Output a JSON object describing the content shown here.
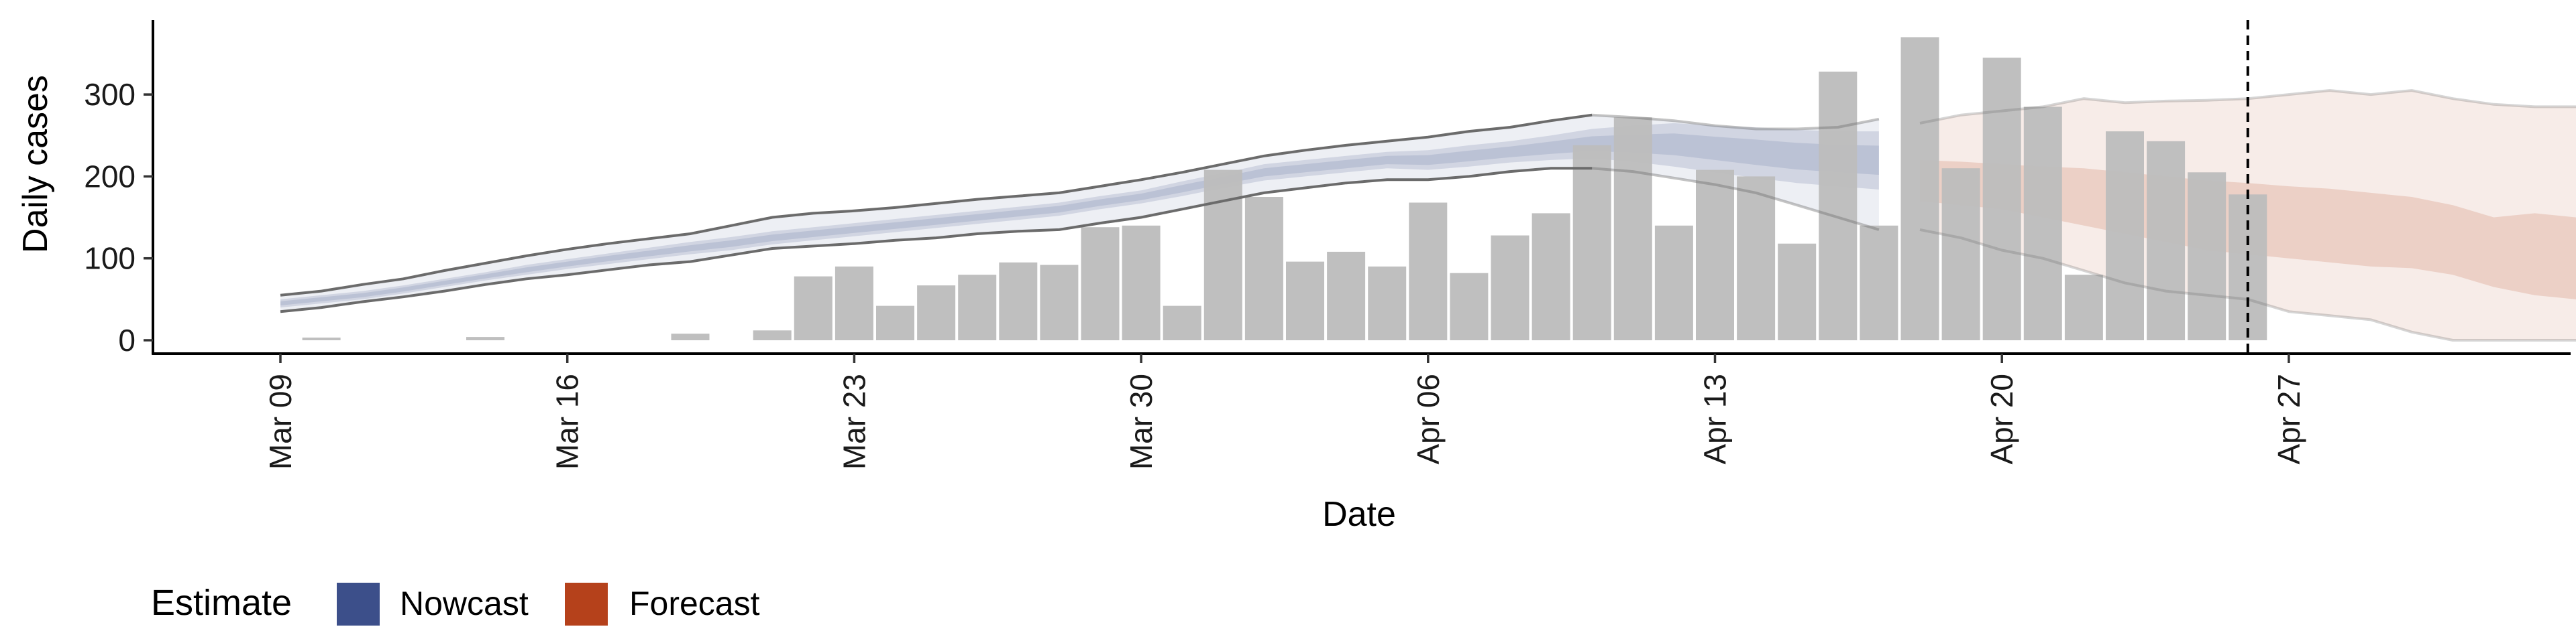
{
  "chart_data": {
    "type": "bar",
    "xlabel": "Date",
    "ylabel": "Daily cases",
    "x_start": "2020-03-09",
    "x_tick_labels": [
      "Mar 09",
      "Mar 16",
      "Mar 23",
      "Mar 30",
      "Apr 06",
      "Apr 13",
      "Apr 20",
      "Apr 27"
    ],
    "y_ticks": [
      0,
      100,
      200,
      300
    ],
    "ylim": [
      -15,
      390
    ],
    "dates": [
      "Mar 09",
      "Mar 10",
      "Mar 11",
      "Mar 12",
      "Mar 13",
      "Mar 14",
      "Mar 15",
      "Mar 16",
      "Mar 17",
      "Mar 18",
      "Mar 19",
      "Mar 20",
      "Mar 21",
      "Mar 22",
      "Mar 23",
      "Mar 24",
      "Mar 25",
      "Mar 26",
      "Mar 27",
      "Mar 28",
      "Mar 29",
      "Mar 30",
      "Mar 31",
      "Apr 01",
      "Apr 02",
      "Apr 03",
      "Apr 04",
      "Apr 05",
      "Apr 06",
      "Apr 07",
      "Apr 08",
      "Apr 09",
      "Apr 10",
      "Apr 11",
      "Apr 12",
      "Apr 13",
      "Apr 14",
      "Apr 15",
      "Apr 16",
      "Apr 17",
      "Apr 18",
      "Apr 19",
      "Apr 20",
      "Apr 21",
      "Apr 22",
      "Apr 23",
      "Apr 24",
      "Apr 25",
      "Apr 26",
      "Apr 27",
      "Apr 28",
      "Apr 29",
      "Apr 30",
      "May 01",
      "May 02",
      "May 03"
    ],
    "reported_cases": [
      0,
      2,
      0,
      0,
      0,
      4,
      0,
      0,
      0,
      0,
      8,
      0,
      12,
      78,
      90,
      42,
      67,
      80,
      95,
      92,
      138,
      140,
      42,
      208,
      175,
      96,
      108,
      90,
      168,
      82,
      128,
      155,
      238,
      272,
      140,
      208,
      200,
      118,
      328,
      140,
      370,
      210,
      345,
      285,
      80,
      255,
      243,
      205,
      178
    ],
    "last_data_date": "Apr 26",
    "nowcast": {
      "median": [
        45,
        50,
        55,
        62,
        70,
        78,
        86,
        93,
        100,
        106,
        112,
        118,
        125,
        130,
        135,
        140,
        145,
        150,
        155,
        160,
        168,
        175,
        185,
        195,
        205,
        210,
        215,
        220,
        220,
        225,
        230,
        235,
        240,
        240,
        240,
        235,
        230,
        225,
        222,
        220
      ],
      "inner_lower": [
        40,
        45,
        50,
        57,
        65,
        73,
        80,
        87,
        93,
        99,
        105,
        110,
        117,
        122,
        127,
        132,
        137,
        142,
        147,
        152,
        160,
        167,
        176,
        186,
        195,
        200,
        205,
        210,
        208,
        212,
        217,
        220,
        222,
        218,
        212,
        205,
        198,
        192,
        188,
        184
      ],
      "inner_upper": [
        50,
        55,
        60,
        67,
        75,
        83,
        92,
        99,
        106,
        113,
        120,
        126,
        133,
        138,
        143,
        148,
        153,
        158,
        163,
        168,
        176,
        183,
        194,
        204,
        215,
        220,
        225,
        230,
        232,
        238,
        243,
        250,
        258,
        262,
        265,
        262,
        260,
        257,
        255,
        255
      ],
      "outer_lower": [
        35,
        40,
        47,
        53,
        60,
        68,
        75,
        80,
        86,
        92,
        96,
        104,
        112,
        115,
        118,
        122,
        125,
        130,
        133,
        135,
        143,
        150,
        160,
        170,
        180,
        186,
        192,
        196,
        196,
        200,
        206,
        210,
        210,
        206,
        198,
        190,
        180,
        165,
        150,
        135
      ],
      "outer_upper": [
        55,
        60,
        68,
        75,
        85,
        94,
        103,
        111,
        118,
        124,
        130,
        140,
        150,
        155,
        158,
        162,
        167,
        172,
        176,
        180,
        188,
        196,
        205,
        215,
        225,
        232,
        238,
        243,
        248,
        255,
        260,
        268,
        275,
        272,
        268,
        262,
        258,
        258,
        260,
        270
      ]
    },
    "forecast": {
      "inner_lower": [
        170,
        165,
        160,
        150,
        140,
        130,
        120,
        110,
        105,
        100,
        95,
        90,
        88,
        80,
        65,
        55,
        50,
        35
      ],
      "inner_upper": [
        220,
        218,
        215,
        212,
        210,
        205,
        200,
        195,
        192,
        188,
        185,
        180,
        175,
        165,
        150,
        155,
        150,
        135
      ],
      "outer_lower": [
        135,
        125,
        110,
        100,
        85,
        70,
        60,
        55,
        50,
        35,
        30,
        25,
        10,
        0,
        0,
        0,
        0,
        0
      ],
      "outer_upper": [
        265,
        275,
        280,
        285,
        295,
        290,
        292,
        293,
        295,
        300,
        305,
        300,
        305,
        295,
        288,
        285,
        285,
        285
      ]
    },
    "legend": {
      "title": "Estimate",
      "entries": [
        {
          "label": "Nowcast",
          "color": "#3c4f8a"
        },
        {
          "label": "Forecast",
          "color": "#b5411b"
        }
      ],
      "placement": "bottom-left"
    },
    "colors": {
      "bars": "#bdbdbd",
      "nowcast": "#3c4f8a",
      "forecast": "#b5411b",
      "bound_line": "#6b6b6b"
    },
    "grid": false
  }
}
